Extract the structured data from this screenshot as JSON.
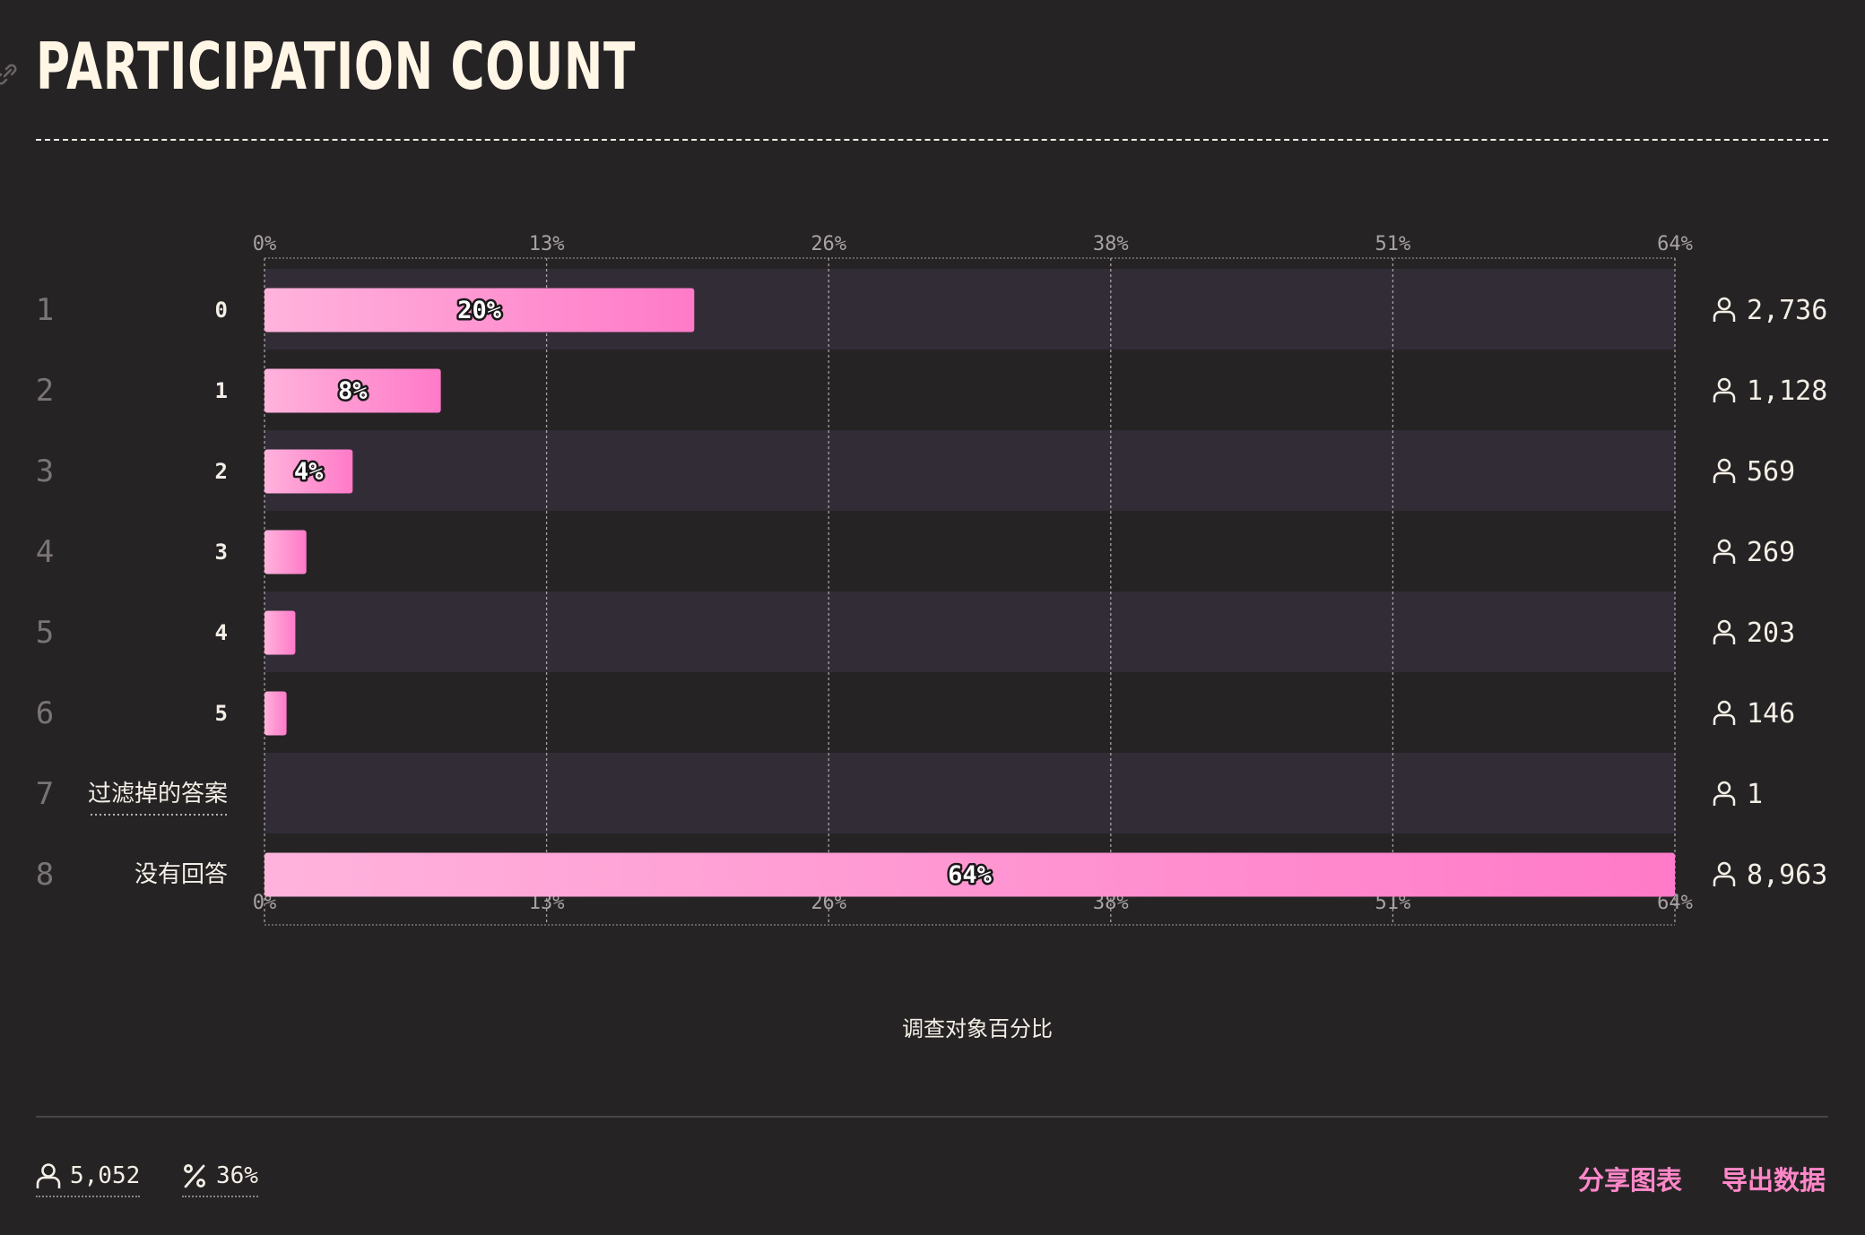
{
  "title": "PARTICIPATION COUNT",
  "chart_data": {
    "type": "bar",
    "orientation": "horizontal",
    "title": "PARTICIPATION COUNT",
    "xlabel": "调查对象百分比",
    "xlim": [
      0,
      64
    ],
    "x_ticks": [
      "0%",
      "13%",
      "26%",
      "38%",
      "51%",
      "64%"
    ],
    "x_tick_values": [
      0,
      12.8,
      25.6,
      38.4,
      51.2,
      64
    ],
    "grid": true,
    "categories": [
      "0",
      "1",
      "2",
      "3",
      "4",
      "5",
      "过滤掉的答案",
      "没有回答"
    ],
    "row_numbers": [
      "1",
      "2",
      "3",
      "4",
      "5",
      "6",
      "7",
      "8"
    ],
    "values": [
      19.5,
      8.0,
      4.0,
      1.9,
      1.4,
      1.0,
      0,
      64
    ],
    "value_labels": [
      "20%",
      "8%",
      "4%",
      "",
      "",
      "",
      "",
      "64%"
    ],
    "counts": [
      "2,736",
      "1,128",
      "569",
      "269",
      "203",
      "146",
      "1",
      "8,963"
    ],
    "underlined_categories": [
      "过滤掉的答案"
    ],
    "colors": {
      "bar_start": "#ffb3dc",
      "bar_end": "#ff7ac8",
      "band": "#322c37",
      "background": "#262325"
    }
  },
  "footer": {
    "total_count": "5,052",
    "percent": "36%",
    "share_label": "分享图表",
    "export_label": "导出数据",
    "accent": "#ff87c8"
  }
}
